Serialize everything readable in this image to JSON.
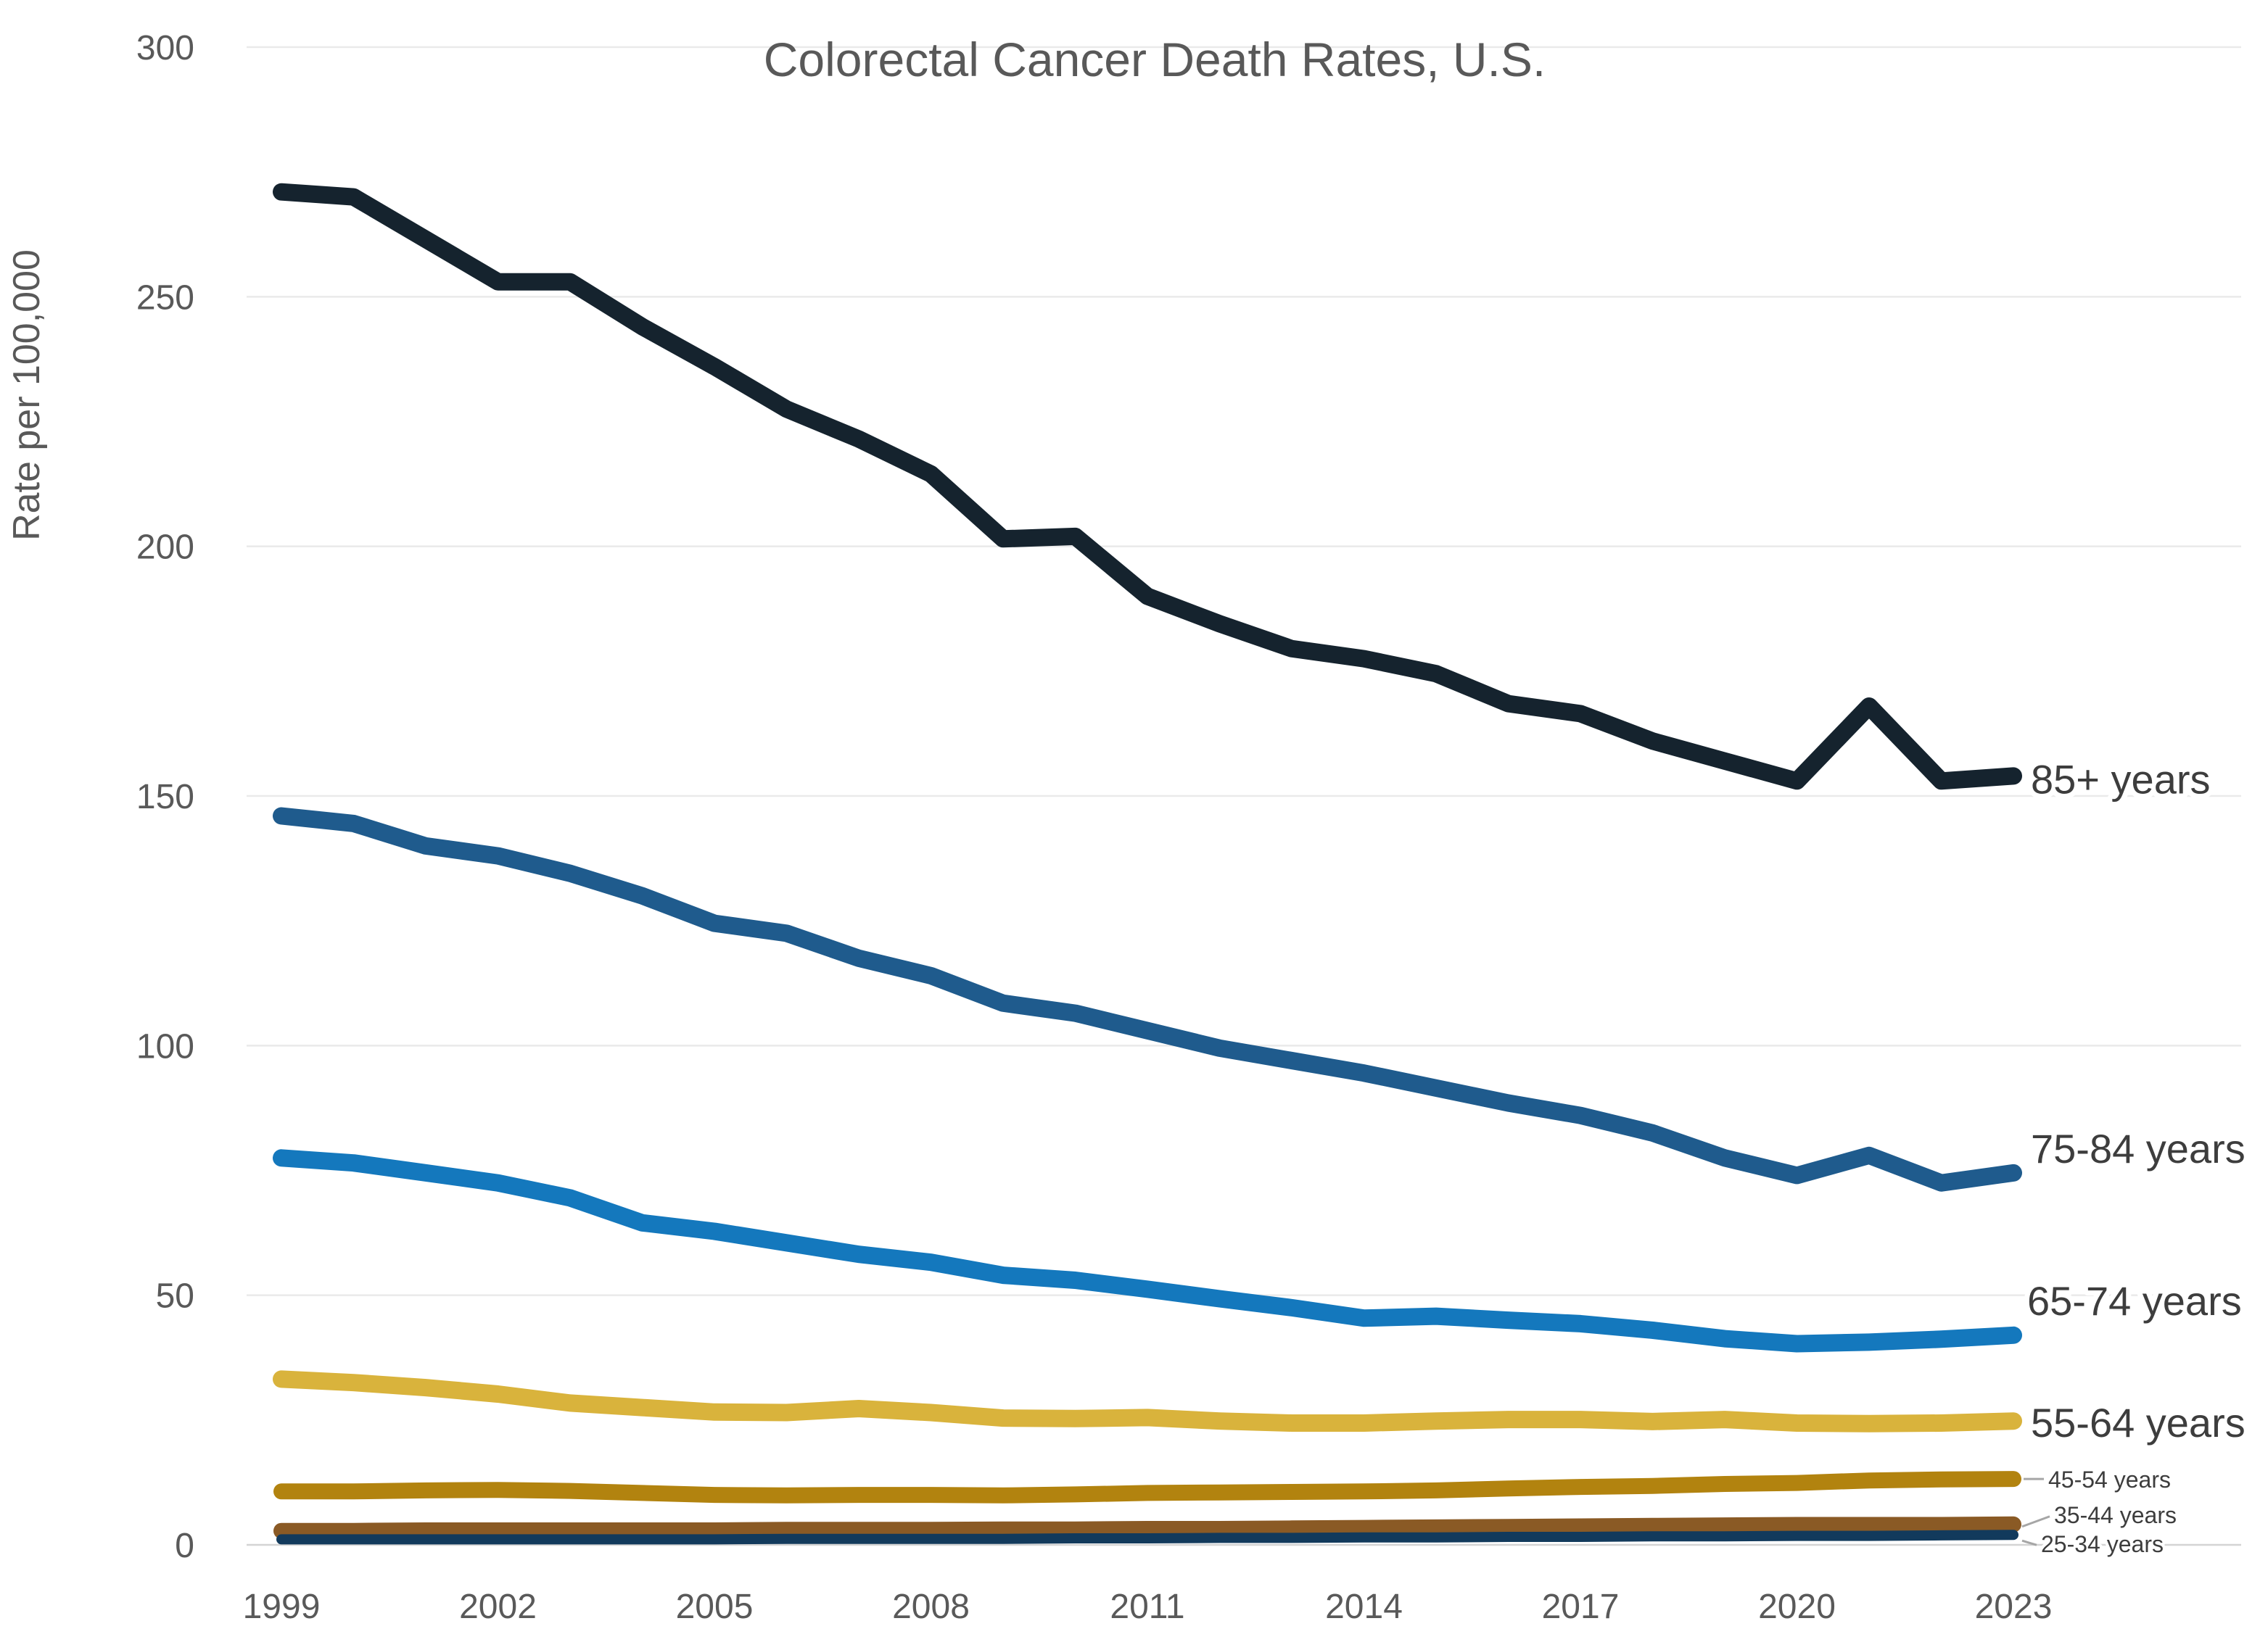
{
  "title": "Colorectal Cancer Death Rates, U.S.",
  "y_axis_label": "Rate per 100,000",
  "colors": {
    "background": "#ffffff",
    "grid": "#eaeaea",
    "zero_line": "#d4d4d4",
    "axis_text": "#595959",
    "title_text": "#595959",
    "series_label_text": "#3d3d3d",
    "leader_line": "#a6a6a6"
  },
  "chart_data": {
    "type": "line",
    "title": "Colorectal Cancer Death Rates, U.S.",
    "xlabel": "",
    "ylabel": "Rate per 100,000",
    "ylim": [
      0,
      300
    ],
    "yticks": [
      0,
      50,
      100,
      150,
      200,
      250,
      300
    ],
    "xticks": [
      1999,
      2002,
      2005,
      2008,
      2011,
      2014,
      2017,
      2020,
      2023
    ],
    "grid": "horizontal",
    "legend_position": "right-end-labels",
    "x": [
      1999,
      2000,
      2001,
      2002,
      2003,
      2004,
      2005,
      2006,
      2007,
      2008,
      2009,
      2010,
      2011,
      2012,
      2013,
      2014,
      2015,
      2016,
      2017,
      2018,
      2019,
      2020,
      2021,
      2022,
      2023
    ],
    "series": [
      {
        "id": "85plus",
        "label": "85+ years",
        "color": "#15232e",
        "label_size": "large",
        "values": [
          271,
          270,
          261.5,
          253,
          253,
          244,
          236,
          227.5,
          221.5,
          214.5,
          201.5,
          202,
          190,
          184.5,
          179.5,
          177.5,
          174.5,
          168.5,
          166.5,
          161,
          157,
          153,
          168,
          153,
          154
        ]
      },
      {
        "id": "75-84",
        "label": "75-84 years",
        "color": "#1f5b8d",
        "label_size": "large",
        "values": [
          146,
          144.5,
          140,
          138,
          134.5,
          130,
          124.5,
          122.5,
          117.5,
          114,
          108.5,
          106.5,
          103,
          99.5,
          97,
          94.5,
          91.5,
          88.5,
          86,
          82.5,
          77.5,
          74,
          78,
          72.5,
          74.5
        ]
      },
      {
        "id": "65-74",
        "label": "65-74 years",
        "color": "#1478bd",
        "label_size": "large",
        "values": [
          77.5,
          76.5,
          74.5,
          72.5,
          69.5,
          64.5,
          62.8,
          60.5,
          58.2,
          56.6,
          54,
          53,
          51.2,
          49.3,
          47.5,
          45.4,
          45.8,
          45,
          44.3,
          43,
          41.3,
          40.3,
          40.6,
          41.2,
          42
        ]
      },
      {
        "id": "55-64",
        "label": "55-64 years",
        "color": "#d9b33c",
        "label_size": "large",
        "values": [
          33.2,
          32.5,
          31.5,
          30.2,
          28.4,
          27.5,
          26.6,
          26.5,
          27.3,
          26.5,
          25.4,
          25.3,
          25.5,
          24.8,
          24.4,
          24.4,
          24.8,
          25.1,
          25.1,
          24.7,
          25.1,
          24.4,
          24.3,
          24.4,
          24.8
        ]
      },
      {
        "id": "45-54",
        "label": "45-54 years",
        "color": "#b2830f",
        "label_size": "small",
        "values": [
          10.7,
          10.7,
          10.9,
          11,
          10.8,
          10.4,
          10,
          9.9,
          10,
          10,
          9.9,
          10.1,
          10.4,
          10.5,
          10.6,
          10.7,
          10.9,
          11.3,
          11.6,
          11.8,
          12.2,
          12.4,
          12.9,
          13.1,
          13.2
        ]
      },
      {
        "id": "35-44",
        "label": "35-44 years",
        "color": "#8a5a25",
        "label_size": "small",
        "values": [
          2.8,
          2.8,
          2.9,
          2.9,
          2.9,
          2.9,
          2.9,
          3,
          3,
          3,
          3.1,
          3.1,
          3.2,
          3.2,
          3.3,
          3.4,
          3.5,
          3.6,
          3.7,
          3.8,
          3.9,
          4,
          4,
          4,
          4.1
        ]
      },
      {
        "id": "25-34",
        "label": "25-34 years",
        "color": "#123a5c",
        "label_size": "small",
        "values": [
          1.1,
          1.1,
          1.1,
          1.1,
          1.1,
          1.1,
          1.1,
          1.2,
          1.2,
          1.2,
          1.2,
          1.3,
          1.3,
          1.4,
          1.4,
          1.5,
          1.5,
          1.6,
          1.6,
          1.7,
          1.7,
          1.8,
          1.8,
          1.9,
          2
        ]
      }
    ]
  }
}
